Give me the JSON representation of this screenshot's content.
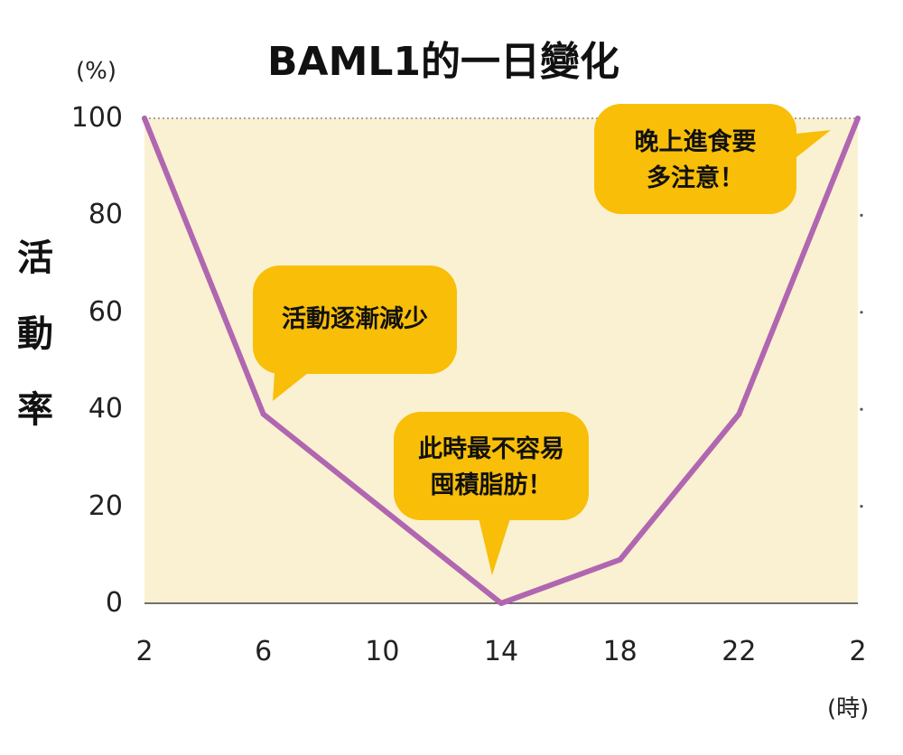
{
  "colors": {
    "plot_bg": "#faf1d2",
    "line": "#b066b0",
    "bubble": "#f8be08",
    "axis": "#444444",
    "gridline": "#888888"
  },
  "chart_data": {
    "type": "line",
    "title": "BAML1的一日變化",
    "ylabel": "活動率",
    "yunit": "(%)",
    "xunit": "(時)",
    "ylim": [
      0,
      100
    ],
    "yticks": [
      "0",
      "20",
      "40",
      "60",
      "80",
      "100"
    ],
    "xticks": [
      "2",
      "6",
      "10",
      "14",
      "18",
      "22",
      "2"
    ],
    "series": [
      {
        "x": [
          2,
          6,
          14,
          18,
          22,
          26
        ],
        "y": [
          100,
          39,
          0,
          9,
          39,
          100
        ]
      }
    ],
    "annotations": [
      {
        "lines": [
          "活動逐漸減少"
        ]
      },
      {
        "lines": [
          "此時最不容易",
          "囤積脂肪！"
        ]
      },
      {
        "lines": [
          "晚上進食要",
          "多注意！"
        ]
      }
    ]
  }
}
